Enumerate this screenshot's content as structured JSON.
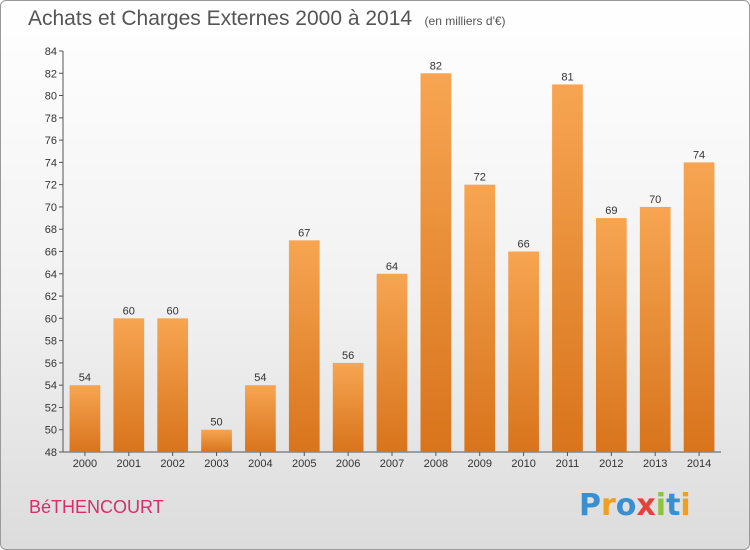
{
  "title": "Achats et Charges Externes 2000 à 2014",
  "unit_note": "(en milliers d'€)",
  "commune": "BéTHENCOURT",
  "brand": {
    "text": "Proxiti",
    "letters": [
      {
        "ch": "P",
        "color": "#3a8fd0"
      },
      {
        "ch": "r",
        "color": "#f0a020"
      },
      {
        "ch": "o",
        "color": "#3a8fd0"
      },
      {
        "ch": "x",
        "color": "#e8403a"
      },
      {
        "ch": "i",
        "color": "#8cc43c"
      },
      {
        "ch": "t",
        "color": "#3a8fd0"
      },
      {
        "ch": "i",
        "color": "#f0a020"
      }
    ]
  },
  "colors": {
    "bar_top": "#f7a552",
    "bar_bottom": "#d8741c",
    "title": "#555555",
    "commune": "#d2306a"
  },
  "chart_data": {
    "type": "bar",
    "title": "Achats et Charges Externes 2000 à 2014",
    "subtitle": "(en milliers d'€)",
    "xlabel": "",
    "ylabel": "",
    "categories": [
      "2000",
      "2001",
      "2002",
      "2003",
      "2004",
      "2005",
      "2006",
      "2007",
      "2008",
      "2009",
      "2010",
      "2011",
      "2012",
      "2013",
      "2014"
    ],
    "values": [
      54,
      60,
      60,
      50,
      54,
      67,
      56,
      64,
      82,
      72,
      66,
      81,
      69,
      70,
      74
    ],
    "ylim": [
      48,
      84
    ],
    "yticks": [
      48,
      50,
      52,
      54,
      56,
      58,
      60,
      62,
      64,
      66,
      68,
      70,
      72,
      74,
      76,
      78,
      80,
      82,
      84
    ],
    "grid": false,
    "legend": "none"
  }
}
